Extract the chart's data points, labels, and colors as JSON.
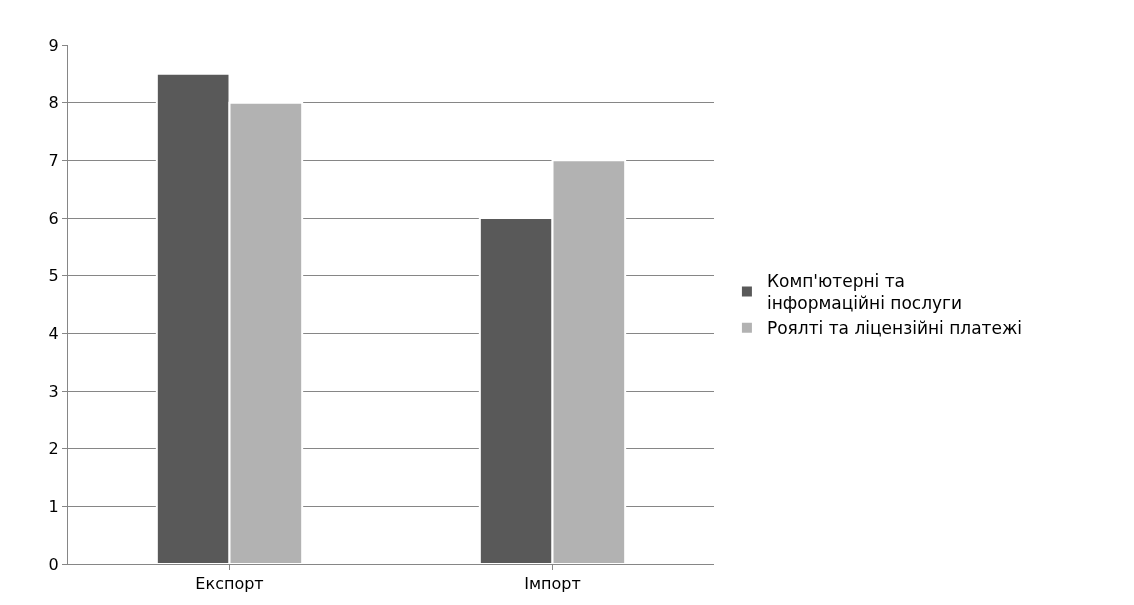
{
  "chart_data": {
    "type": "bar",
    "categories": [
      "Експорт",
      "Імпорт"
    ],
    "series": [
      {
        "name": "Комп'ютерні та інформаційні послуги",
        "color": "#595959",
        "values": [
          8.5,
          6
        ]
      },
      {
        "name": "Роялті та ліцензійні платежі",
        "color": "#b2b2b2",
        "values": [
          8,
          7
        ]
      }
    ],
    "ylim": [
      0,
      9
    ],
    "yticks": [
      0,
      1,
      2,
      3,
      4,
      5,
      6,
      7,
      8,
      9
    ],
    "grid": "y",
    "legend": "right"
  }
}
